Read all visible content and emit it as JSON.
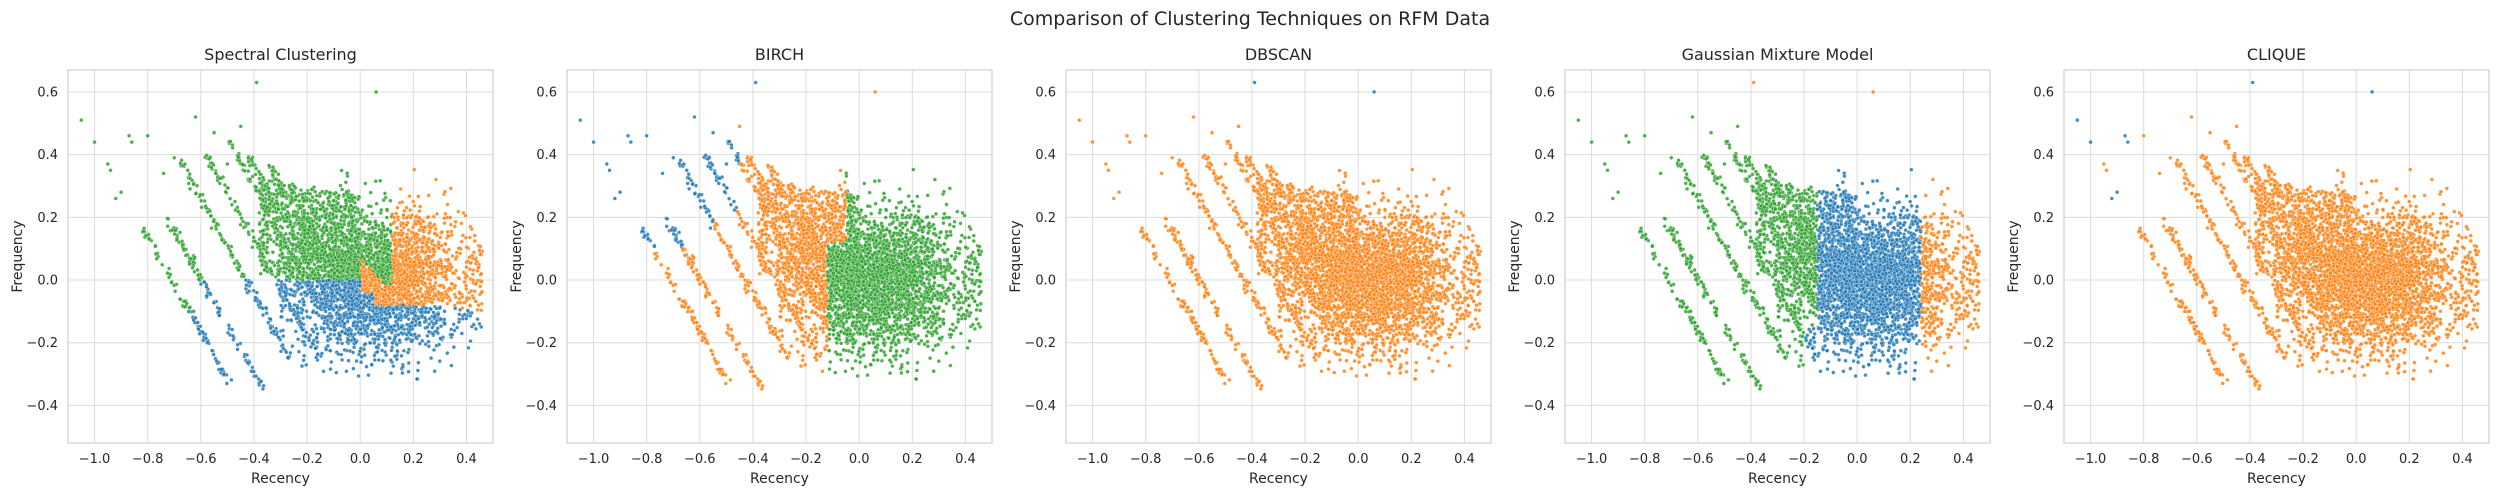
{
  "figure": {
    "title": "Comparison of Clustering Techniques on RFM Data"
  },
  "colors": {
    "blue": "#1f77b4",
    "orange": "#ff7f0e",
    "green": "#2ca02c",
    "grid": "#dcdcdc",
    "spine": "#cfcfcf"
  },
  "chart_data": [
    {
      "type": "scatter",
      "title": "Spectral Clustering",
      "xlabel": "Recency",
      "ylabel": "Frequency",
      "xlim": [
        -1.1,
        0.5
      ],
      "ylim": [
        -0.52,
        0.67
      ],
      "xticks": [
        "-1.0",
        "-0.8",
        "-0.6",
        "-0.4",
        "-0.2",
        "0.0",
        "0.2",
        "0.4"
      ],
      "yticks": [
        "-0.4",
        "-0.2",
        "0.0",
        "0.2",
        "0.4",
        "0.6"
      ],
      "grid": true,
      "cluster_colors": [
        "green",
        "blue",
        "orange"
      ],
      "segmentation": "spectral",
      "series": [
        {
          "color": "green",
          "approx_points": 900
        },
        {
          "color": "blue",
          "approx_points": 1100
        },
        {
          "color": "orange",
          "approx_points": 2300
        }
      ]
    },
    {
      "type": "scatter",
      "title": "BIRCH",
      "xlabel": "Recency",
      "ylabel": "Frequency",
      "xlim": [
        -1.1,
        0.5
      ],
      "ylim": [
        -0.52,
        0.67
      ],
      "xticks": [
        "-1.0",
        "-0.8",
        "-0.6",
        "-0.4",
        "-0.2",
        "0.0",
        "0.2",
        "0.4"
      ],
      "yticks": [
        "-0.4",
        "-0.2",
        "0.0",
        "0.2",
        "0.4",
        "0.6"
      ],
      "grid": true,
      "cluster_colors": [
        "blue",
        "orange",
        "green"
      ],
      "segmentation": "birch",
      "series": [
        {
          "color": "blue",
          "approx_points": 350
        },
        {
          "color": "orange",
          "approx_points": 1400
        },
        {
          "color": "green",
          "approx_points": 2600
        }
      ]
    },
    {
      "type": "scatter",
      "title": "DBSCAN",
      "xlabel": "Recency",
      "ylabel": "Frequency",
      "xlim": [
        -1.1,
        0.5
      ],
      "ylim": [
        -0.52,
        0.67
      ],
      "xticks": [
        "-1.0",
        "-0.8",
        "-0.6",
        "-0.4",
        "-0.2",
        "0.0",
        "0.2",
        "0.4"
      ],
      "yticks": [
        "-0.4",
        "-0.2",
        "0.0",
        "0.2",
        "0.4",
        "0.6"
      ],
      "grid": true,
      "cluster_colors": [
        "orange",
        "blue"
      ],
      "segmentation": "dbscan",
      "series": [
        {
          "color": "orange",
          "approx_points": 4300
        },
        {
          "color": "blue",
          "approx_points": 3
        }
      ]
    },
    {
      "type": "scatter",
      "title": "Gaussian Mixture Model",
      "xlabel": "Recency",
      "ylabel": "Frequency",
      "xlim": [
        -1.1,
        0.5
      ],
      "ylim": [
        -0.52,
        0.67
      ],
      "xticks": [
        "-1.0",
        "-0.8",
        "-0.6",
        "-0.4",
        "-0.2",
        "0.0",
        "0.2",
        "0.4"
      ],
      "yticks": [
        "-0.4",
        "-0.2",
        "0.0",
        "0.2",
        "0.4",
        "0.6"
      ],
      "grid": true,
      "cluster_colors": [
        "green",
        "blue",
        "orange"
      ],
      "segmentation": "gmm",
      "series": [
        {
          "color": "green",
          "approx_points": 1300
        },
        {
          "color": "blue",
          "approx_points": 2500
        },
        {
          "color": "orange",
          "approx_points": 500
        }
      ]
    },
    {
      "type": "scatter",
      "title": "CLIQUE",
      "xlabel": "Recency",
      "ylabel": "Frequency",
      "xlim": [
        -1.1,
        0.5
      ],
      "ylim": [
        -0.52,
        0.67
      ],
      "xticks": [
        "-1.0",
        "-0.8",
        "-0.6",
        "-0.4",
        "-0.2",
        "0.0",
        "0.2",
        "0.4"
      ],
      "yticks": [
        "-0.4",
        "-0.2",
        "0.0",
        "0.2",
        "0.4",
        "0.6"
      ],
      "grid": true,
      "cluster_colors": [
        "orange",
        "blue"
      ],
      "segmentation": "clique",
      "series": [
        {
          "color": "orange",
          "approx_points": 4300
        },
        {
          "color": "blue",
          "approx_points": 6
        }
      ]
    }
  ]
}
